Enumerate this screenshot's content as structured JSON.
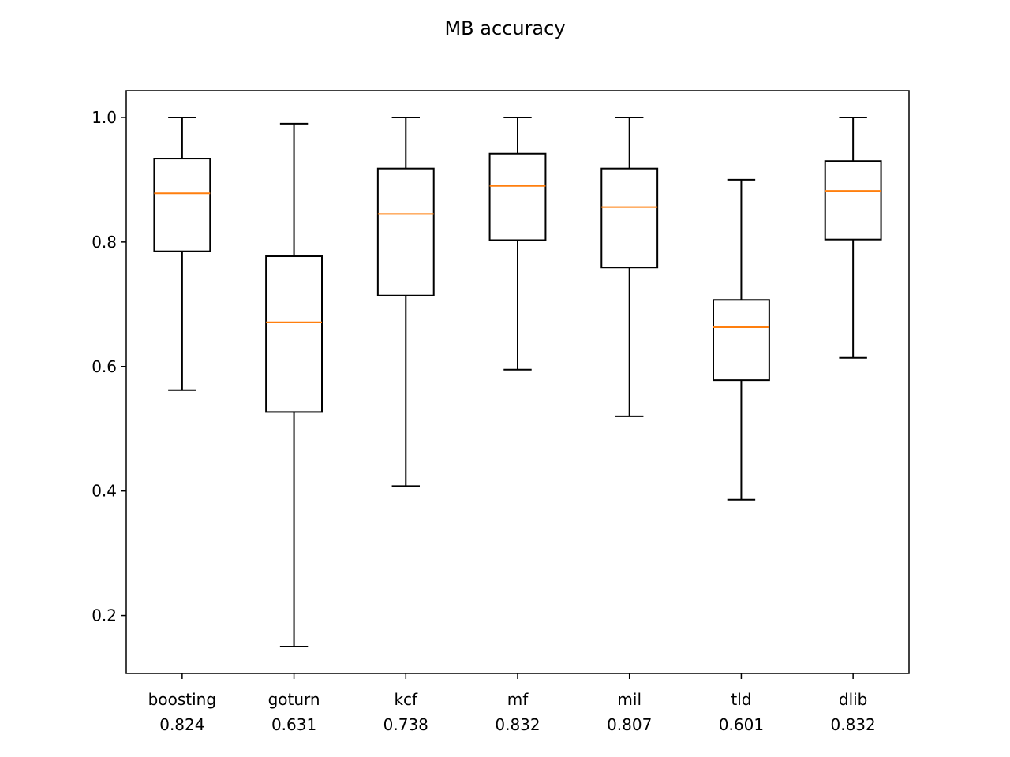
{
  "chart_data": {
    "type": "box",
    "title": "MB accuracy",
    "xlabel": "",
    "ylabel": "",
    "ylim": [
      0.107,
      1.043
    ],
    "yticks": [
      "0.2",
      "0.4",
      "0.6",
      "0.8",
      "1.0"
    ],
    "grid": false,
    "categories": [
      "boosting",
      "goturn",
      "kcf",
      "mf",
      "mil",
      "tld",
      "dlib"
    ],
    "category_values": [
      "0.824",
      "0.631",
      "0.738",
      "0.832",
      "0.807",
      "0.601",
      "0.832"
    ],
    "boxes": [
      {
        "whisker_low": 0.562,
        "q1": 0.785,
        "median": 0.878,
        "q3": 0.934,
        "whisker_high": 1.0
      },
      {
        "whisker_low": 0.15,
        "q1": 0.527,
        "median": 0.671,
        "q3": 0.777,
        "whisker_high": 0.99
      },
      {
        "whisker_low": 0.408,
        "q1": 0.714,
        "median": 0.845,
        "q3": 0.918,
        "whisker_high": 1.0
      },
      {
        "whisker_low": 0.595,
        "q1": 0.803,
        "median": 0.89,
        "q3": 0.942,
        "whisker_high": 1.0
      },
      {
        "whisker_low": 0.52,
        "q1": 0.759,
        "median": 0.856,
        "q3": 0.918,
        "whisker_high": 1.0
      },
      {
        "whisker_low": 0.386,
        "q1": 0.578,
        "median": 0.663,
        "q3": 0.707,
        "whisker_high": 0.9
      },
      {
        "whisker_low": 0.614,
        "q1": 0.804,
        "median": 0.882,
        "q3": 0.93,
        "whisker_high": 1.0
      }
    ],
    "colors": {
      "box": "#000000",
      "median": "#ff7f0e"
    }
  }
}
